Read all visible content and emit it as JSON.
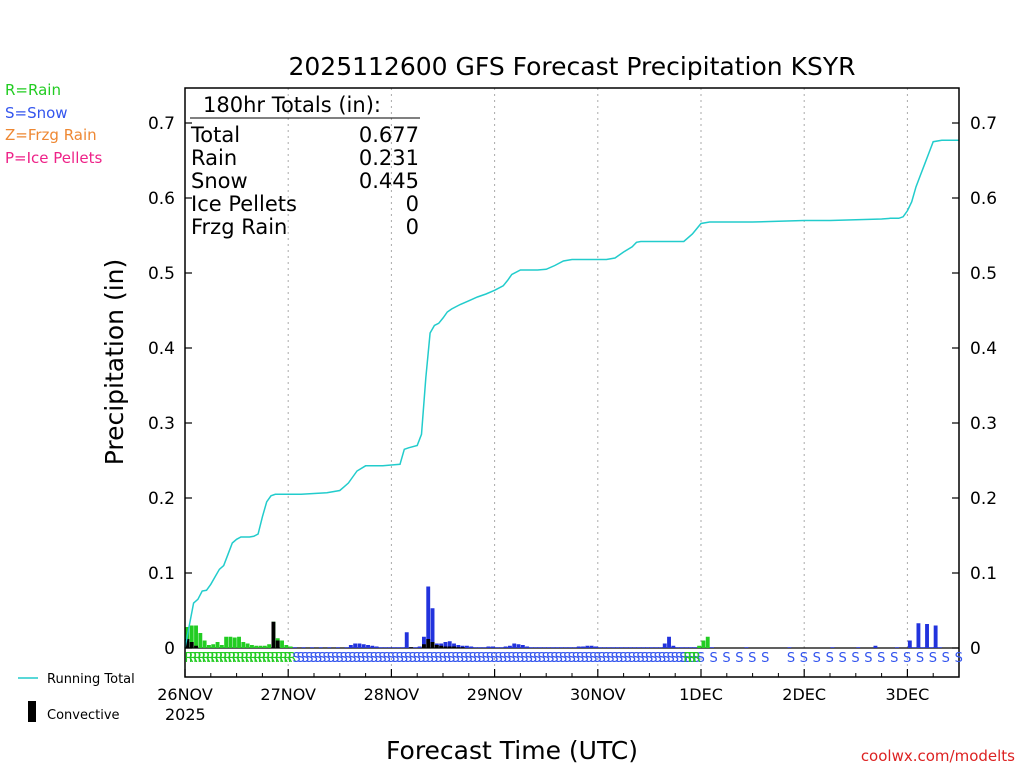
{
  "chart_data": {
    "type": "bar",
    "title": "2025112600 GFS Forecast Precipitation KSYR",
    "ylabel": "Precipitation (in)",
    "xlabel": "Forecast Time (UTC)",
    "ylim": [
      -0.01,
      0.75
    ],
    "yticks": [
      0,
      0.1,
      0.2,
      0.3,
      0.4,
      0.5,
      0.6,
      0.7
    ],
    "ytick_labels": [
      "0",
      "0.1",
      "0.2",
      "0.3",
      "0.4",
      "0.5",
      "0.6",
      "0.7"
    ],
    "xlim_hours": [
      0,
      180
    ],
    "x_ticks": [
      {
        "hour": 0,
        "label": "26NOV"
      },
      {
        "hour": 24,
        "label": "27NOV"
      },
      {
        "hour": 48,
        "label": "28NOV"
      },
      {
        "hour": 72,
        "label": "29NOV"
      },
      {
        "hour": 96,
        "label": "30NOV"
      },
      {
        "hour": 120,
        "label": "1DEC"
      },
      {
        "hour": 144,
        "label": "2DEC"
      },
      {
        "hour": 168,
        "label": "3DEC"
      }
    ],
    "year_label": "2025",
    "legend_types": [
      {
        "text": "R=Rain",
        "color": "#22cc22"
      },
      {
        "text": "S=Snow",
        "color": "#3355ee"
      },
      {
        "text": "Z=Frzg Rain",
        "color": "#ee8833"
      },
      {
        "text": "P=Ice Pellets",
        "color": "#ee2288"
      }
    ],
    "legend_lines": [
      {
        "text": "Running Total",
        "color": "#22cccc"
      },
      {
        "text": "Convective",
        "color": "#000000"
      }
    ],
    "totals": {
      "header": "180hr Totals (in):",
      "rows": [
        {
          "label": "Total",
          "value": "0.677"
        },
        {
          "label": "Rain",
          "value": "0.231"
        },
        {
          "label": "Snow",
          "value": "0.445"
        },
        {
          "label": "Ice Pellets",
          "value": "0"
        },
        {
          "label": "Frzg Rain",
          "value": "0"
        }
      ]
    },
    "colors": {
      "rain": "#22cc22",
      "snow": "#2233dd",
      "running": "#22cccc",
      "convective": "#000000",
      "grid": "#aaaaaa"
    },
    "series": [
      {
        "name": "Running Total",
        "hours": [
          0,
          1,
          2,
          3,
          4,
          5,
          6,
          7,
          8,
          9,
          10,
          11,
          12,
          13,
          14,
          15,
          16,
          17,
          18,
          19,
          20,
          21,
          22,
          23,
          24,
          27,
          30,
          33,
          36,
          37,
          38,
          39,
          40,
          42,
          44,
          46,
          48,
          50,
          51,
          52,
          54,
          55,
          56,
          57,
          58,
          59,
          60,
          61,
          62,
          64,
          66,
          68,
          70,
          72,
          74,
          75,
          76,
          78,
          80,
          82,
          84,
          86,
          88,
          90,
          92,
          94,
          96,
          98,
          100,
          102,
          104,
          105,
          106,
          108,
          110,
          112,
          114,
          116,
          118,
          120,
          122,
          126,
          132,
          138,
          144,
          150,
          156,
          162,
          164,
          165,
          166,
          167,
          168,
          169,
          170,
          171,
          172,
          173,
          174,
          176,
          177,
          178,
          180
        ],
        "values": [
          0,
          0.03,
          0.06,
          0.065,
          0.076,
          0.077,
          0.085,
          0.095,
          0.105,
          0.11,
          0.125,
          0.14,
          0.145,
          0.148,
          0.148,
          0.148,
          0.149,
          0.152,
          0.175,
          0.195,
          0.203,
          0.205,
          0.205,
          0.205,
          0.205,
          0.205,
          0.206,
          0.207,
          0.21,
          0.215,
          0.22,
          0.228,
          0.236,
          0.243,
          0.243,
          0.243,
          0.244,
          0.245,
          0.265,
          0.267,
          0.27,
          0.285,
          0.36,
          0.42,
          0.43,
          0.433,
          0.44,
          0.448,
          0.452,
          0.458,
          0.463,
          0.468,
          0.472,
          0.477,
          0.483,
          0.49,
          0.498,
          0.504,
          0.504,
          0.504,
          0.505,
          0.51,
          0.516,
          0.518,
          0.518,
          0.518,
          0.518,
          0.518,
          0.52,
          0.528,
          0.535,
          0.541,
          0.542,
          0.542,
          0.542,
          0.542,
          0.542,
          0.542,
          0.552,
          0.566,
          0.568,
          0.568,
          0.568,
          0.569,
          0.57,
          0.57,
          0.571,
          0.572,
          0.573,
          0.573,
          0.573,
          0.575,
          0.583,
          0.595,
          0.615,
          0.63,
          0.645,
          0.66,
          0.675,
          0.677,
          0.677,
          0.677,
          0.677
        ]
      },
      {
        "name": "Rain",
        "hours": [
          0,
          1,
          2,
          3,
          4,
          5,
          6,
          7,
          8,
          9,
          10,
          11,
          12,
          13,
          14,
          15,
          16,
          17,
          18,
          19,
          20,
          21,
          22,
          23,
          24,
          119,
          120,
          121
        ],
        "values": [
          0.028,
          0.03,
          0.03,
          0.02,
          0.01,
          0.004,
          0.005,
          0.008,
          0.004,
          0.015,
          0.015,
          0.014,
          0.015,
          0.008,
          0.006,
          0.004,
          0.003,
          0.003,
          0.003,
          0.005,
          0.035,
          0.013,
          0.01,
          0.004,
          0.002,
          0.003,
          0.01,
          0.015
        ]
      },
      {
        "name": "Snow",
        "hours": [
          25,
          27,
          29,
          31,
          33,
          35,
          37,
          38,
          39,
          40,
          41,
          42,
          43,
          44,
          45,
          46,
          47,
          48,
          49,
          50,
          51,
          52,
          53,
          54,
          55,
          56,
          57,
          58,
          59,
          60,
          61,
          62,
          63,
          64,
          65,
          66,
          67,
          68,
          69,
          70,
          71,
          72,
          73,
          74,
          75,
          76,
          77,
          78,
          79,
          80,
          81,
          82,
          83,
          84,
          85,
          86,
          87,
          88,
          89,
          90,
          91,
          92,
          93,
          94,
          95,
          96,
          97,
          98,
          99,
          100,
          101,
          102,
          103,
          104,
          105,
          106,
          107,
          108,
          109,
          110,
          111,
          112,
          113,
          114,
          115,
          116,
          117,
          118,
          122,
          130,
          140,
          150,
          156,
          160,
          165,
          168,
          169,
          170,
          171,
          172,
          173,
          174,
          175
        ],
        "values": [
          0.001,
          0.001,
          0.001,
          0.001,
          0.001,
          0.001,
          0.001,
          0.004,
          0.006,
          0.006,
          0.005,
          0.004,
          0.003,
          0.002,
          0.001,
          0.001,
          0.001,
          0.001,
          0.001,
          0.001,
          0.021,
          0.001,
          0.001,
          0.002,
          0.015,
          0.082,
          0.053,
          0.006,
          0.006,
          0.008,
          0.009,
          0.006,
          0.004,
          0.003,
          0.003,
          0.002,
          0.001,
          0.001,
          0.001,
          0.002,
          0.002,
          0.001,
          0.001,
          0.002,
          0.003,
          0.006,
          0.005,
          0.004,
          0.002,
          0.001,
          0.001,
          0.001,
          0.001,
          0.001,
          0.001,
          0.001,
          0.001,
          0.001,
          0.001,
          0.001,
          0.002,
          0.002,
          0.003,
          0.003,
          0.002,
          0.001,
          0.001,
          0.001,
          0.001,
          0.001,
          0.001,
          0.001,
          0.001,
          0.001,
          0.001,
          0.001,
          0.001,
          0.001,
          0.001,
          0.001,
          0.006,
          0.015,
          0.003,
          0.001,
          0.001,
          0.001,
          0.001,
          0.001,
          0.001,
          0.001,
          0.001,
          0.001,
          0.001,
          0.003,
          0.001,
          0.01,
          0.001,
          0.033,
          0.001,
          0.032,
          0.001,
          0.03,
          0.001
        ]
      },
      {
        "name": "Convective",
        "hours": [
          0,
          1,
          2,
          20,
          21,
          52,
          55,
          56,
          57,
          58,
          59,
          60,
          61,
          62,
          63,
          64
        ],
        "values": [
          0.012,
          0.008,
          0.003,
          0.035,
          0.01,
          0.001,
          0.005,
          0.012,
          0.008,
          0.004,
          0.003,
          0.002,
          0.002,
          0.002,
          0.001,
          0.001
        ]
      }
    ],
    "ptype_strip": [
      {
        "from": 0,
        "to": 24,
        "text": "R",
        "step": 1,
        "color": "#22cc22"
      },
      {
        "from": 25,
        "to": 119,
        "text": "S",
        "step": 1,
        "color": "#3355ee"
      },
      {
        "from": 115,
        "to": 115,
        "text": "S",
        "step": 1,
        "color": "#3355ee"
      },
      {
        "from": 116,
        "to": 116,
        "text": "R",
        "step": 1,
        "color": "#22cc22"
      },
      {
        "from": 117,
        "to": 118,
        "text": "R",
        "step": 1,
        "color": "#22cc22"
      },
      {
        "from": 122,
        "to": 134,
        "text": "S",
        "step": 3,
        "color": "#3355ee"
      },
      {
        "from": 140,
        "to": 152,
        "text": "S",
        "step": 3,
        "color": "#3355ee"
      },
      {
        "from": 155,
        "to": 179,
        "text": "S",
        "step": 3,
        "color": "#3355ee"
      }
    ],
    "credit": "coolwx.com/modelts"
  }
}
